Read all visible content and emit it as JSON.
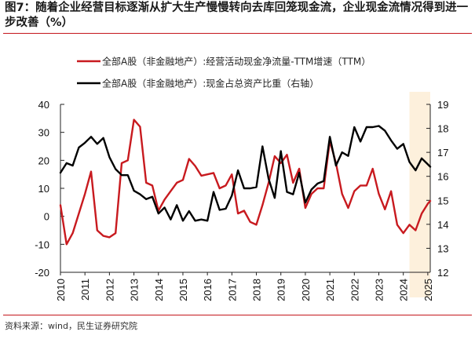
{
  "title": "图7：随着企业经营目标逐渐从扩大生产慢慢转向去库回笼现金流，企业现金流情况得到进一步改善（%）",
  "source": "资料来源：wind，民生证券研究院",
  "chart_data": {
    "type": "line",
    "x_tick_labels": [
      "2010",
      "2011",
      "2012",
      "2013",
      "2014",
      "2015",
      "2016",
      "2017",
      "2018",
      "2019",
      "2020",
      "2021",
      "2022",
      "2023",
      "2024",
      "2025"
    ],
    "xlim": [
      2010.0,
      2025.1
    ],
    "left_axis": {
      "ylim": [
        -20,
        40
      ],
      "ticks": [
        "-20",
        "-10",
        "0",
        "10",
        "20",
        "30",
        "40"
      ]
    },
    "right_axis": {
      "ylim": [
        12,
        19
      ],
      "ticks": [
        "12",
        "13",
        "14",
        "15",
        "16",
        "17",
        "18",
        "19"
      ]
    },
    "highlight_region": {
      "x_range": [
        2024.25,
        2025.1
      ],
      "color": "#fdf0dc"
    },
    "series": [
      {
        "name": "全部A股（非金融地产）:经营活动现金净流量-TTM增速（TTM）",
        "axis": "left",
        "color": "#c81a1f",
        "x": [
          2010.0,
          2010.25,
          2010.5,
          2010.75,
          2011.0,
          2011.25,
          2011.5,
          2011.75,
          2012.0,
          2012.25,
          2012.5,
          2012.75,
          2013.0,
          2013.25,
          2013.5,
          2013.75,
          2014.0,
          2014.25,
          2014.5,
          2014.75,
          2015.0,
          2015.25,
          2015.5,
          2015.75,
          2016.0,
          2016.25,
          2016.5,
          2016.75,
          2017.0,
          2017.25,
          2017.5,
          2017.75,
          2018.0,
          2018.25,
          2018.5,
          2018.75,
          2019.0,
          2019.25,
          2019.5,
          2019.75,
          2020.0,
          2020.25,
          2020.5,
          2020.75,
          2021.0,
          2021.25,
          2021.5,
          2021.75,
          2022.0,
          2022.25,
          2022.5,
          2022.75,
          2023.0,
          2023.25,
          2023.5,
          2023.75,
          2024.0,
          2024.25,
          2024.5,
          2024.75,
          2025.0,
          2025.1
        ],
        "y": [
          4,
          -10,
          -6,
          1,
          8,
          16,
          -5,
          -7,
          -7.5,
          -6,
          19,
          20,
          34.5,
          32,
          12,
          11,
          2,
          6,
          9,
          12,
          13,
          20.5,
          18,
          14.5,
          15,
          15.5,
          10,
          11,
          15,
          1,
          2,
          -2,
          -3,
          4,
          12,
          21.5,
          19,
          22,
          12,
          17,
          3,
          8,
          10,
          10,
          27,
          19,
          8,
          3,
          9,
          11,
          11,
          17,
          8,
          2.5,
          9,
          -3,
          -6,
          -3,
          -5,
          1,
          4.5,
          5.5
        ]
      },
      {
        "name": "全部A股（非金融地产）:现金占总资产比重（右轴）",
        "axis": "right",
        "color": "#000000",
        "x": [
          2010.0,
          2010.25,
          2010.5,
          2010.75,
          2011.0,
          2011.25,
          2011.5,
          2011.75,
          2012.0,
          2012.25,
          2012.5,
          2012.75,
          2013.0,
          2013.25,
          2013.5,
          2013.75,
          2014.0,
          2014.25,
          2014.5,
          2014.75,
          2015.0,
          2015.25,
          2015.5,
          2015.75,
          2016.0,
          2016.25,
          2016.5,
          2016.75,
          2017.0,
          2017.25,
          2017.5,
          2017.75,
          2018.0,
          2018.25,
          2018.5,
          2018.75,
          2019.0,
          2019.25,
          2019.5,
          2019.75,
          2020.0,
          2020.25,
          2020.5,
          2020.75,
          2021.0,
          2021.25,
          2021.5,
          2021.75,
          2022.0,
          2022.25,
          2022.5,
          2022.75,
          2023.0,
          2023.25,
          2023.5,
          2023.75,
          2024.0,
          2024.25,
          2024.5,
          2024.75,
          2025.0,
          2025.1
        ],
        "y": [
          16.15,
          16.55,
          16.45,
          17.2,
          17.4,
          17.65,
          17.35,
          17.6,
          16.8,
          16.3,
          16.05,
          16.05,
          15.4,
          15.25,
          15.05,
          15.15,
          14.45,
          14.7,
          14.2,
          14.8,
          14.15,
          14.55,
          14.15,
          14.2,
          14.15,
          15.35,
          14.6,
          14.65,
          15.2,
          16.25,
          15.5,
          15.5,
          15.55,
          17.25,
          15.9,
          15.1,
          17.05,
          15.35,
          15.25,
          16.15,
          14.9,
          15.45,
          15.7,
          15.8,
          17.65,
          16.45,
          17.0,
          16.85,
          18.05,
          17.45,
          18.05,
          18.05,
          18.1,
          17.9,
          17.5,
          17.15,
          17.35,
          16.6,
          16.25,
          16.75,
          16.5,
          16.4
        ]
      }
    ]
  }
}
